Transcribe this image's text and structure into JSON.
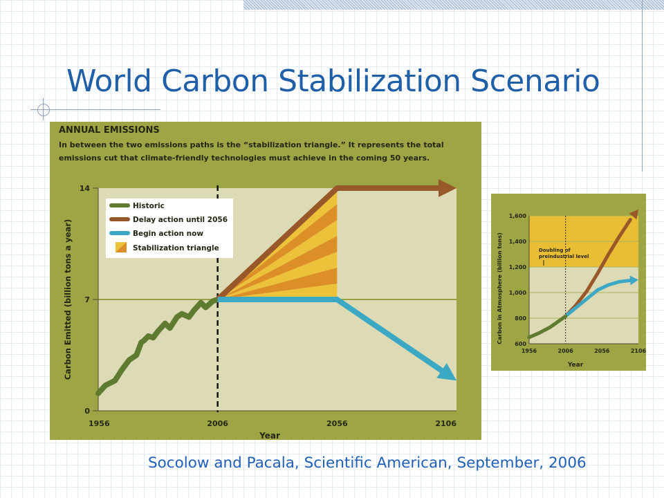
{
  "slide": {
    "title": "World Carbon Stabilization Scenario",
    "citation": "Socolow and Pacala, Scientific American, September, 2006"
  },
  "colors": {
    "title": "#1f5fa7",
    "chart_frame": "#9ea545",
    "plot_bg": "#dcdbb5",
    "historic": "#5e7b30",
    "delay": "#99582a",
    "begin_now": "#3da8c4",
    "triangle_light": "#ecc23a",
    "triangle_dark": "#db8f26",
    "doubling_band": "#e9bd34"
  },
  "chart_data": [
    {
      "type": "line",
      "title": "ANNUAL EMISSIONS",
      "subtitle_lines": [
        "In between the two emissions paths is the “stabilization triangle.” It represents the total",
        "emissions cut that climate-friendly technologies must achieve in the coming 50 years."
      ],
      "xlabel": "Year",
      "ylabel": "Carbon Emitted (billion tons a year)",
      "x_ticks": [
        "1956",
        "2006",
        "2056",
        "2106"
      ],
      "y_ticks": [
        "0",
        "7",
        "14"
      ],
      "xlim": [
        1956,
        2106
      ],
      "ylim": [
        0,
        14
      ],
      "legend": {
        "position": "top-left",
        "items": [
          "Historic",
          "Delay action until 2056",
          "Begin action now",
          "Stabilization triangle"
        ]
      },
      "series": [
        {
          "name": "Historic",
          "x": [
            1956,
            1959,
            1963,
            1966,
            1969,
            1972,
            1974,
            1975,
            1977,
            1979,
            1981,
            1984,
            1986,
            1989,
            1991,
            1994,
            1996,
            1999,
            2001,
            2004,
            2006
          ],
          "y": [
            1.1,
            1.6,
            1.9,
            2.6,
            3.2,
            3.5,
            4.3,
            4.4,
            4.7,
            4.6,
            5.0,
            5.5,
            5.2,
            5.9,
            6.1,
            5.9,
            6.3,
            6.8,
            6.5,
            6.9,
            7.0
          ]
        },
        {
          "name": "Delay action until 2056",
          "x": [
            2006,
            2056,
            2106
          ],
          "y": [
            7,
            14,
            14
          ]
        },
        {
          "name": "Begin action now",
          "x": [
            2006,
            2056,
            2106
          ],
          "y": [
            7,
            7,
            1.9
          ]
        }
      ],
      "stabilization_triangle": {
        "x": [
          2006,
          2056,
          2056
        ],
        "y": [
          7,
          14,
          7
        ],
        "wedges": 7
      }
    },
    {
      "type": "line",
      "xlabel": "Year",
      "ylabel": "Carbon in Atmosphere (billion tons)",
      "x_ticks": [
        "1956",
        "2006",
        "2056",
        "2106"
      ],
      "y_ticks": [
        "600",
        "800",
        "1,000",
        "1,200",
        "1,400",
        "1,600"
      ],
      "xlim": [
        1956,
        2106
      ],
      "ylim": [
        600,
        1600
      ],
      "annotation": [
        "Doubling of",
        "preindustrial level"
      ],
      "doubling_band": [
        1200,
        1600
      ],
      "series": [
        {
          "name": "Delay action until 2056",
          "x": [
            1956,
            1970,
            1985,
            1995,
            2006,
            2020,
            2035,
            2050,
            2065,
            2080,
            2095,
            2106
          ],
          "y": [
            650,
            685,
            730,
            770,
            815,
            900,
            1010,
            1150,
            1300,
            1440,
            1570,
            1650
          ]
        },
        {
          "name": "Begin action now",
          "x": [
            2006,
            2020,
            2035,
            2050,
            2065,
            2080,
            2095,
            2106
          ],
          "y": [
            815,
            880,
            950,
            1020,
            1060,
            1085,
            1095,
            1100
          ]
        }
      ]
    }
  ]
}
